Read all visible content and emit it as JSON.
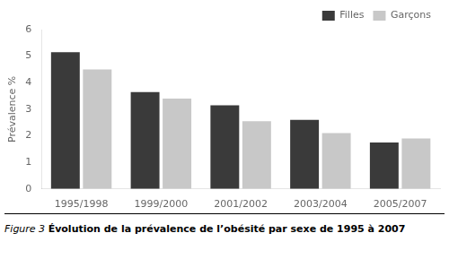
{
  "chart_data": {
    "type": "bar",
    "categories": [
      "1995/1998",
      "1999/2000",
      "2001/2002",
      "2003/2004",
      "2005/2007"
    ],
    "series": [
      {
        "name": "Filles",
        "color": "#3a3a3a",
        "values": [
          5.15,
          3.65,
          3.15,
          2.6,
          1.75
        ]
      },
      {
        "name": "Garçons",
        "color": "#c8c8c8",
        "values": [
          4.5,
          3.4,
          2.55,
          2.1,
          1.9
        ]
      }
    ],
    "ylabel": "Prévalence %",
    "ylim": [
      0,
      6
    ],
    "yticks": [
      0,
      1,
      2,
      3,
      4,
      5,
      6
    ],
    "grid": false,
    "legend": "upper right",
    "annotations": [
      "Figure 3 ",
      "Évolution de la prévalence de l’obésité par sexe de 1995 à 2007"
    ]
  }
}
